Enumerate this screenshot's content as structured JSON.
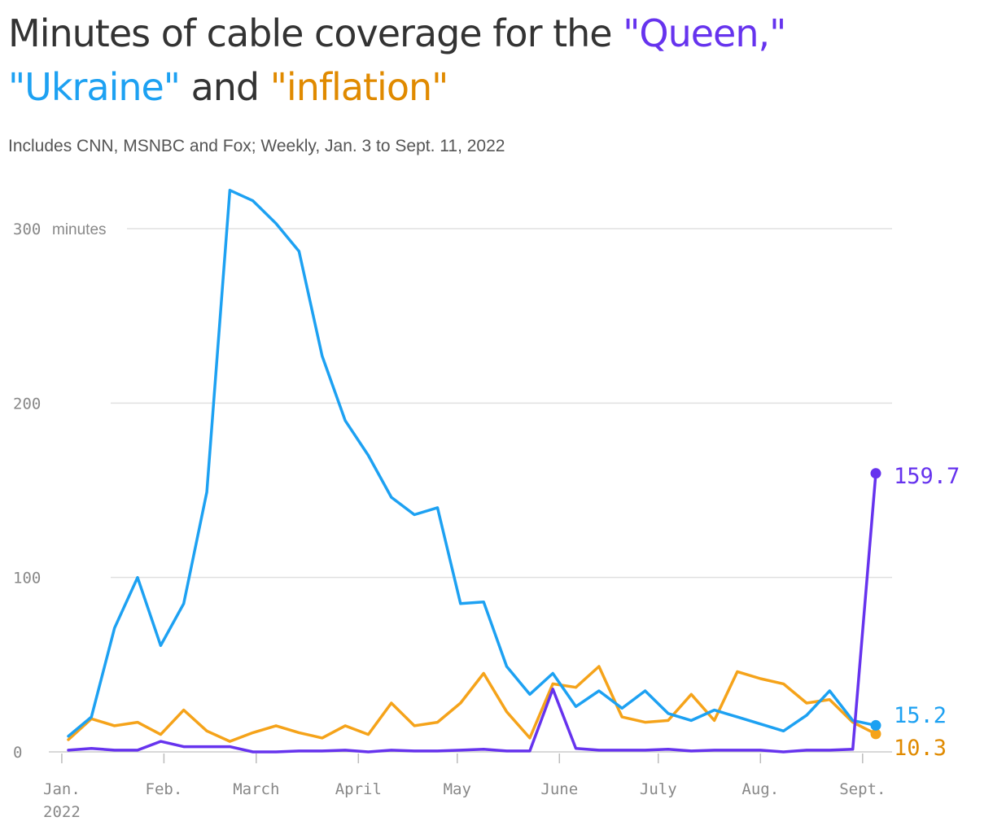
{
  "title": {
    "lead": "Minutes of cable coverage for the ",
    "term_queen": "\"Queen,\"",
    "term_ukraine": "\"Ukraine\"",
    "connector": " and ",
    "term_inflation": "\"inflation\""
  },
  "subtitle": "Includes CNN, MSNBC and Fox; Weekly, Jan. 3 to Sept. 11, 2022",
  "colors": {
    "queen": "#6633ee",
    "ukraine": "#1da1f2",
    "inflation": "#f5a31a",
    "text": "#333333",
    "grid": "#e0e0e0",
    "axis_text": "#888888",
    "end_label_inflation": "#e08a00"
  },
  "chart_data": {
    "type": "line",
    "title": "Minutes of cable coverage for the \"Queen,\" \"Ukraine\" and \"inflation\"",
    "subtitle": "Includes CNN, MSNBC and Fox; Weekly, Jan. 3 to Sept. 11, 2022",
    "xlabel": "",
    "ylabel": "",
    "y_unit": "minutes",
    "ylim": [
      0,
      300
    ],
    "yticks": [
      0,
      100,
      200,
      300
    ],
    "grid": true,
    "legend": "colored title words",
    "x_ticks": [
      {
        "label": "Jan.",
        "sublabel": "2022",
        "date": "2022-01-01"
      },
      {
        "label": "Feb.",
        "date": "2022-02-01"
      },
      {
        "label": "March",
        "date": "2022-03-01"
      },
      {
        "label": "April",
        "date": "2022-04-01"
      },
      {
        "label": "May",
        "date": "2022-05-01"
      },
      {
        "label": "June",
        "date": "2022-06-01"
      },
      {
        "label": "July",
        "date": "2022-07-01"
      },
      {
        "label": "Aug.",
        "date": "2022-08-01"
      },
      {
        "label": "Sept.",
        "date": "2022-09-01"
      }
    ],
    "x": [
      "2022-01-03",
      "2022-01-10",
      "2022-01-17",
      "2022-01-24",
      "2022-01-31",
      "2022-02-07",
      "2022-02-14",
      "2022-02-21",
      "2022-02-28",
      "2022-03-07",
      "2022-03-14",
      "2022-03-21",
      "2022-03-28",
      "2022-04-04",
      "2022-04-11",
      "2022-04-18",
      "2022-04-25",
      "2022-05-02",
      "2022-05-09",
      "2022-05-16",
      "2022-05-23",
      "2022-05-30",
      "2022-06-06",
      "2022-06-13",
      "2022-06-20",
      "2022-06-27",
      "2022-07-04",
      "2022-07-11",
      "2022-07-18",
      "2022-07-25",
      "2022-08-01",
      "2022-08-08",
      "2022-08-15",
      "2022-08-22",
      "2022-08-29",
      "2022-09-05"
    ],
    "series": [
      {
        "key": "ukraine",
        "name": "\"Ukraine\"",
        "end_label": "15.2",
        "values": [
          9,
          20,
          71,
          100,
          61,
          85,
          149,
          322,
          316,
          303,
          287,
          227,
          190,
          170,
          146,
          136,
          140,
          85,
          86,
          49,
          33,
          45,
          26,
          35,
          25,
          35,
          22,
          18,
          24,
          20,
          16,
          12,
          21,
          35,
          18,
          15.2
        ]
      },
      {
        "key": "inflation",
        "name": "\"inflation\"",
        "end_label": "10.3",
        "values": [
          7,
          19,
          15,
          17,
          10,
          24,
          12,
          6,
          11,
          15,
          11,
          8,
          15,
          10,
          28,
          15,
          17,
          28,
          45,
          23,
          8,
          39,
          37,
          49,
          20,
          17,
          18,
          33,
          18,
          46,
          42,
          39,
          28,
          30,
          17,
          10.3
        ]
      },
      {
        "key": "queen",
        "name": "\"Queen,\"",
        "end_label": "159.7",
        "values": [
          1,
          2,
          1,
          1,
          6,
          3,
          3,
          3,
          0,
          0,
          0.5,
          0.5,
          1,
          0,
          1,
          0.5,
          0.5,
          1,
          1.5,
          0.5,
          0.5,
          36,
          2,
          1,
          1,
          1,
          1.5,
          0.5,
          1,
          1,
          1,
          0,
          1,
          1,
          1.5,
          159.7
        ]
      }
    ]
  }
}
